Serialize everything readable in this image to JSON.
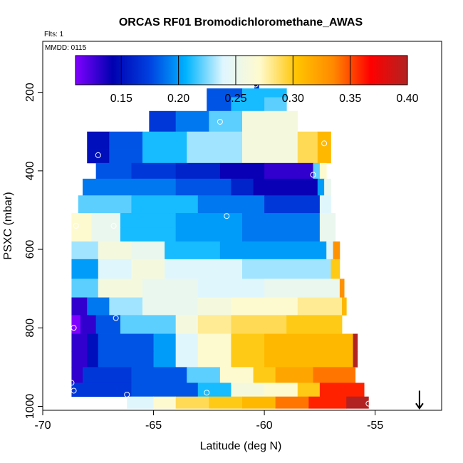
{
  "chart_data": {
    "type": "heatmap",
    "title": "ORCAS RF01 Bromodichloromethane_AWAS",
    "annotations": [
      "Flts: 1",
      "MMDD: 0115"
    ],
    "xlabel": "Latitude (deg N)",
    "ylabel": "PSXC (mbar)",
    "xlim": [
      -70,
      -52
    ],
    "ylim": [
      1010,
      70
    ],
    "x_ticks": [
      -70,
      -65,
      -60,
      -55
    ],
    "x_tick_labels": [
      "-70",
      "-65",
      "-60",
      "-55"
    ],
    "y_ticks": [
      200,
      400,
      600,
      800,
      1000
    ],
    "y_tick_labels": [
      "200",
      "400",
      "600",
      "800",
      "1000"
    ],
    "colorbar": {
      "min": 0.11,
      "max": 0.4,
      "ticks": [
        0.15,
        0.2,
        0.25,
        0.3,
        0.35,
        0.4
      ],
      "tick_labels": [
        "0.15",
        "0.20",
        "0.25",
        "0.30",
        "0.35",
        "0.40"
      ],
      "colors": [
        "#8000ff",
        "#0000b0",
        "#0040e0",
        "#00b4ff",
        "#dff6ff",
        "#fffacd",
        "#ffc400",
        "#ff8800",
        "#ff0000",
        "#b22222"
      ]
    },
    "arrow": {
      "x": -53,
      "p_from": 960,
      "p_to": 1005
    },
    "bands": [
      {
        "p": 180,
        "segments": [
          {
            "x0": -60.45,
            "x1": -60.25,
            "v": 0.16
          }
        ]
      },
      {
        "p": 200,
        "segments": [
          {
            "x0": -62.6,
            "x1": -61.0,
            "v": 0.18
          },
          {
            "x0": -61.0,
            "x1": -59.0,
            "v": 0.21
          }
        ]
      },
      {
        "p": 225,
        "segments": [
          {
            "x0": -62.6,
            "x1": -61.5,
            "v": 0.18
          },
          {
            "x0": -61.5,
            "x1": -60.0,
            "v": 0.21
          },
          {
            "x0": -60.0,
            "x1": -59.0,
            "v": 0.22
          }
        ]
      },
      {
        "p": 270,
        "segments": [
          {
            "x0": -65.2,
            "x1": -64.0,
            "v": 0.17
          },
          {
            "x0": -64.0,
            "x1": -62.5,
            "v": 0.19
          },
          {
            "x0": -62.5,
            "x1": -61.0,
            "v": 0.22
          },
          {
            "x0": -61.0,
            "x1": -58.5,
            "v": 0.26
          }
        ]
      },
      {
        "p": 330,
        "segments": [
          {
            "x0": -68.0,
            "x1": -67.0,
            "v": 0.15
          },
          {
            "x0": -67.0,
            "x1": -65.5,
            "v": 0.18
          },
          {
            "x0": -65.5,
            "x1": -63.5,
            "v": 0.21
          },
          {
            "x0": -63.5,
            "x1": -61.0,
            "v": 0.23
          },
          {
            "x0": -61.0,
            "x1": -58.5,
            "v": 0.26
          },
          {
            "x0": -58.5,
            "x1": -57.6,
            "v": 0.29
          },
          {
            "x0": -57.6,
            "x1": -57.0,
            "v": 0.31
          }
        ]
      },
      {
        "p": 360,
        "segments": [
          {
            "x0": -68.0,
            "x1": -67.0,
            "v": 0.15
          },
          {
            "x0": -67.0,
            "x1": -65.5,
            "v": 0.18
          },
          {
            "x0": -65.5,
            "x1": -63.5,
            "v": 0.21
          },
          {
            "x0": -63.5,
            "x1": -61.0,
            "v": 0.23
          },
          {
            "x0": -61.0,
            "x1": -58.5,
            "v": 0.26
          },
          {
            "x0": -58.5,
            "x1": -57.6,
            "v": 0.29
          },
          {
            "x0": -57.6,
            "x1": -57.0,
            "v": 0.31
          }
        ]
      },
      {
        "p": 400,
        "segments": [
          {
            "x0": -67.6,
            "x1": -66.0,
            "v": 0.18
          },
          {
            "x0": -66.0,
            "x1": -64.0,
            "v": 0.17
          },
          {
            "x0": -64.0,
            "x1": -62.0,
            "v": 0.16
          },
          {
            "x0": -62.0,
            "x1": -60.0,
            "v": 0.14
          },
          {
            "x0": -60.0,
            "x1": -57.8,
            "v": 0.13
          },
          {
            "x0": -57.8,
            "x1": -57.5,
            "v": 0.22
          },
          {
            "x0": -57.5,
            "x1": -57.2,
            "v": 0.27
          }
        ]
      },
      {
        "p": 440,
        "segments": [
          {
            "x0": -68.2,
            "x1": -64.0,
            "v": 0.19
          },
          {
            "x0": -64.0,
            "x1": -61.5,
            "v": 0.18
          },
          {
            "x0": -61.5,
            "x1": -60.5,
            "v": 0.16
          },
          {
            "x0": -60.5,
            "x1": -57.6,
            "v": 0.14
          },
          {
            "x0": -57.6,
            "x1": -57.3,
            "v": 0.2
          },
          {
            "x0": -57.3,
            "x1": -57.0,
            "v": 0.25
          }
        ]
      },
      {
        "p": 485,
        "segments": [
          {
            "x0": -68.4,
            "x1": -66.0,
            "v": 0.22
          },
          {
            "x0": -66.0,
            "x1": -63.0,
            "v": 0.21
          },
          {
            "x0": -63.0,
            "x1": -60.0,
            "v": 0.19
          },
          {
            "x0": -60.0,
            "x1": -57.5,
            "v": 0.17
          },
          {
            "x0": -57.5,
            "x1": -57.0,
            "v": 0.24
          }
        ]
      },
      {
        "p": 530,
        "segments": [
          {
            "x0": -68.7,
            "x1": -67.8,
            "v": 0.27
          },
          {
            "x0": -67.8,
            "x1": -66.5,
            "v": 0.25
          },
          {
            "x0": -66.5,
            "x1": -64.0,
            "v": 0.21
          },
          {
            "x0": -64.0,
            "x1": -61.0,
            "v": 0.2
          },
          {
            "x0": -61.0,
            "x1": -57.5,
            "v": 0.19
          },
          {
            "x0": -57.5,
            "x1": -56.8,
            "v": 0.25
          }
        ]
      },
      {
        "p": 560,
        "segments": [
          {
            "x0": -68.7,
            "x1": -67.8,
            "v": 0.27
          },
          {
            "x0": -67.8,
            "x1": -66.5,
            "v": 0.25
          },
          {
            "x0": -66.5,
            "x1": -64.0,
            "v": 0.21
          },
          {
            "x0": -64.0,
            "x1": -61.0,
            "v": 0.2
          },
          {
            "x0": -61.0,
            "x1": -57.5,
            "v": 0.19
          },
          {
            "x0": -57.5,
            "x1": -56.8,
            "v": 0.25
          }
        ]
      },
      {
        "p": 600,
        "segments": [
          {
            "x0": -68.7,
            "x1": -67.5,
            "v": 0.23
          },
          {
            "x0": -67.5,
            "x1": -66.0,
            "v": 0.26
          },
          {
            "x0": -66.0,
            "x1": -64.5,
            "v": 0.25
          },
          {
            "x0": -64.5,
            "x1": -62.0,
            "v": 0.21
          },
          {
            "x0": -62.0,
            "x1": -59.0,
            "v": 0.2
          },
          {
            "x0": -59.0,
            "x1": -57.2,
            "v": 0.2
          },
          {
            "x0": -57.2,
            "x1": -56.9,
            "v": 0.24
          },
          {
            "x0": -56.9,
            "x1": -56.6,
            "v": 0.33
          }
        ]
      },
      {
        "p": 650,
        "segments": [
          {
            "x0": -68.7,
            "x1": -67.5,
            "v": 0.2
          },
          {
            "x0": -67.5,
            "x1": -66.0,
            "v": 0.24
          },
          {
            "x0": -66.0,
            "x1": -64.5,
            "v": 0.26
          },
          {
            "x0": -64.5,
            "x1": -61.0,
            "v": 0.24
          },
          {
            "x0": -61.0,
            "x1": -57.0,
            "v": 0.23
          },
          {
            "x0": -57.0,
            "x1": -56.6,
            "v": 0.3
          }
        ]
      },
      {
        "p": 700,
        "segments": [
          {
            "x0": -68.7,
            "x1": -67.5,
            "v": 0.22
          },
          {
            "x0": -67.5,
            "x1": -65.5,
            "v": 0.26
          },
          {
            "x0": -65.5,
            "x1": -63.0,
            "v": 0.25
          },
          {
            "x0": -63.0,
            "x1": -60.0,
            "v": 0.24
          },
          {
            "x0": -60.0,
            "x1": -56.6,
            "v": 0.25
          },
          {
            "x0": -56.6,
            "x1": -56.4,
            "v": 0.33
          }
        ]
      },
      {
        "p": 745,
        "segments": [
          {
            "x0": -68.7,
            "x1": -68.0,
            "v": 0.13
          },
          {
            "x0": -68.0,
            "x1": -67.0,
            "v": 0.19
          },
          {
            "x0": -67.0,
            "x1": -65.5,
            "v": 0.23
          },
          {
            "x0": -65.5,
            "x1": -63.0,
            "v": 0.25
          },
          {
            "x0": -63.0,
            "x1": -61.5,
            "v": 0.26
          },
          {
            "x0": -61.5,
            "x1": -58.5,
            "v": 0.27
          },
          {
            "x0": -58.5,
            "x1": -56.5,
            "v": 0.28
          },
          {
            "x0": -56.5,
            "x1": -56.3,
            "v": 0.31
          }
        ]
      },
      {
        "p": 790,
        "segments": [
          {
            "x0": -68.7,
            "x1": -68.3,
            "v": 0.11
          },
          {
            "x0": -68.3,
            "x1": -67.6,
            "v": 0.13
          },
          {
            "x0": -67.6,
            "x1": -66.5,
            "v": 0.18
          },
          {
            "x0": -66.5,
            "x1": -64.0,
            "v": 0.22
          },
          {
            "x0": -64.0,
            "x1": -63.0,
            "v": 0.26
          },
          {
            "x0": -63.0,
            "x1": -61.5,
            "v": 0.28
          },
          {
            "x0": -61.5,
            "x1": -59.0,
            "v": 0.29
          },
          {
            "x0": -59.0,
            "x1": -56.5,
            "v": 0.3
          }
        ]
      },
      {
        "p": 840,
        "segments": [
          {
            "x0": -68.7,
            "x1": -68.0,
            "v": 0.13
          },
          {
            "x0": -68.0,
            "x1": -67.5,
            "v": 0.15
          },
          {
            "x0": -67.5,
            "x1": -65.0,
            "v": 0.18
          },
          {
            "x0": -65.0,
            "x1": -64.0,
            "v": 0.2
          },
          {
            "x0": -64.0,
            "x1": -63.0,
            "v": 0.24
          },
          {
            "x0": -63.0,
            "x1": -61.5,
            "v": 0.27
          },
          {
            "x0": -61.5,
            "x1": -60.0,
            "v": 0.3
          },
          {
            "x0": -60.0,
            "x1": -56.0,
            "v": 0.31
          },
          {
            "x0": -56.0,
            "x1": -55.8,
            "v": 0.4
          }
        ]
      },
      {
        "p": 880,
        "segments": [
          {
            "x0": -68.7,
            "x1": -68.0,
            "v": 0.13
          },
          {
            "x0": -68.0,
            "x1": -67.5,
            "v": 0.15
          },
          {
            "x0": -67.5,
            "x1": -65.0,
            "v": 0.18
          },
          {
            "x0": -65.0,
            "x1": -64.0,
            "v": 0.2
          },
          {
            "x0": -64.0,
            "x1": -63.0,
            "v": 0.24
          },
          {
            "x0": -63.0,
            "x1": -61.5,
            "v": 0.27
          },
          {
            "x0": -61.5,
            "x1": -60.0,
            "v": 0.3
          },
          {
            "x0": -60.0,
            "x1": -56.0,
            "v": 0.31
          },
          {
            "x0": -56.0,
            "x1": -55.8,
            "v": 0.4
          }
        ]
      },
      {
        "p": 920,
        "segments": [
          {
            "x0": -68.7,
            "x1": -68.2,
            "v": 0.13
          },
          {
            "x0": -68.2,
            "x1": -66.0,
            "v": 0.17
          },
          {
            "x0": -66.0,
            "x1": -63.5,
            "v": 0.18
          },
          {
            "x0": -63.5,
            "x1": -62.0,
            "v": 0.22
          },
          {
            "x0": -62.0,
            "x1": -60.5,
            "v": 0.27
          },
          {
            "x0": -60.5,
            "x1": -59.5,
            "v": 0.3
          },
          {
            "x0": -59.5,
            "x1": -57.8,
            "v": 0.32
          },
          {
            "x0": -57.8,
            "x1": -55.9,
            "v": 0.34
          }
        ]
      },
      {
        "p": 960,
        "segments": [
          {
            "x0": -68.7,
            "x1": -66.0,
            "v": 0.17
          },
          {
            "x0": -66.0,
            "x1": -63.0,
            "v": 0.18
          },
          {
            "x0": -63.0,
            "x1": -61.5,
            "v": 0.21
          },
          {
            "x0": -61.5,
            "x1": -60.0,
            "v": 0.26
          },
          {
            "x0": -60.0,
            "x1": -58.5,
            "v": 0.27
          },
          {
            "x0": -58.5,
            "x1": -57.5,
            "v": 0.3
          },
          {
            "x0": -57.5,
            "x1": -55.5,
            "v": 0.36
          }
        ]
      },
      {
        "p": 990,
        "segments": [
          {
            "x0": -66.2,
            "x1": -65.0,
            "v": 0.24
          },
          {
            "x0": -65.0,
            "x1": -64.0,
            "v": 0.27
          },
          {
            "x0": -64.0,
            "x1": -62.5,
            "v": 0.29
          },
          {
            "x0": -62.5,
            "x1": -61.0,
            "v": 0.3
          },
          {
            "x0": -61.0,
            "x1": -59.5,
            "v": 0.31
          },
          {
            "x0": -59.5,
            "x1": -58.0,
            "v": 0.34
          },
          {
            "x0": -58.0,
            "x1": -56.3,
            "v": 0.36
          },
          {
            "x0": -56.3,
            "x1": -55.3,
            "v": 0.4
          }
        ]
      }
    ],
    "samples": [
      {
        "x": -60.4,
        "p": 180
      },
      {
        "x": -62.0,
        "p": 275
      },
      {
        "x": -57.3,
        "p": 330
      },
      {
        "x": -67.5,
        "p": 360
      },
      {
        "x": -57.8,
        "p": 410
      },
      {
        "x": -61.7,
        "p": 515
      },
      {
        "x": -66.8,
        "p": 540
      },
      {
        "x": -68.5,
        "p": 540
      },
      {
        "x": -66.7,
        "p": 775
      },
      {
        "x": -68.6,
        "p": 800
      },
      {
        "x": -68.7,
        "p": 940
      },
      {
        "x": -68.6,
        "p": 960
      },
      {
        "x": -66.2,
        "p": 970
      },
      {
        "x": -62.6,
        "p": 965
      },
      {
        "x": -55.3,
        "p": 993
      }
    ]
  }
}
